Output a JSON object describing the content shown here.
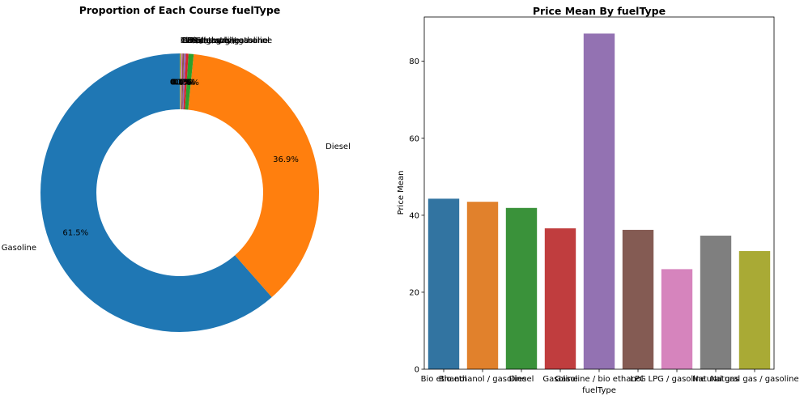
{
  "chart_data": [
    {
      "type": "pie",
      "donut": true,
      "title": "Proportion of Each Course fuelType",
      "labels": [
        "Gasoline",
        "Diesel",
        "Natural gas",
        "Bio ethanol",
        "LPG",
        "Natural gas / gasoline",
        "LPG / gasoline",
        "Gasoline / bio ethanol",
        "Bio ethanol / gasoline"
      ],
      "values": [
        61.5,
        36.9,
        0.6,
        0.3,
        0.2,
        0.2,
        0.1,
        0.1,
        0.1
      ],
      "pct_labels": [
        "61.5%",
        "36.9%",
        "0.6%",
        "0.3%",
        "0.2%",
        "0.2%",
        "0.1%",
        "0.1%",
        "0.1%"
      ],
      "colors": [
        "#1f77b4",
        "#ff7f0e",
        "#2ca02c",
        "#d62728",
        "#9467bd",
        "#8c564b",
        "#e377c2",
        "#7f7f7f",
        "#bcbd22"
      ],
      "start_angle_deg": 90,
      "direction": "counterclockwise"
    },
    {
      "type": "bar",
      "title": "Price Mean By fuelType",
      "xlabel": "fuelType",
      "ylabel": "Price Mean",
      "categories": [
        "Bio ethanol",
        "Bio ethanol / gasoline",
        "Diesel",
        "Gasoline",
        "Gasoline / bio ethanol",
        "LPG",
        "LPG / gasoline",
        "Natural gas",
        "Natural gas / gasoline"
      ],
      "values": [
        44.3,
        43.5,
        41.9,
        36.6,
        87.2,
        36.2,
        26.0,
        34.7,
        30.7
      ],
      "colors": [
        "#3274a1",
        "#e1812c",
        "#3a923a",
        "#c03d3e",
        "#9372b2",
        "#845b53",
        "#d684bd",
        "#7f7f7f",
        "#a9aa35"
      ],
      "ylim": [
        0,
        91.5
      ],
      "yticks": [
        0,
        20,
        40,
        60,
        80
      ]
    }
  ]
}
